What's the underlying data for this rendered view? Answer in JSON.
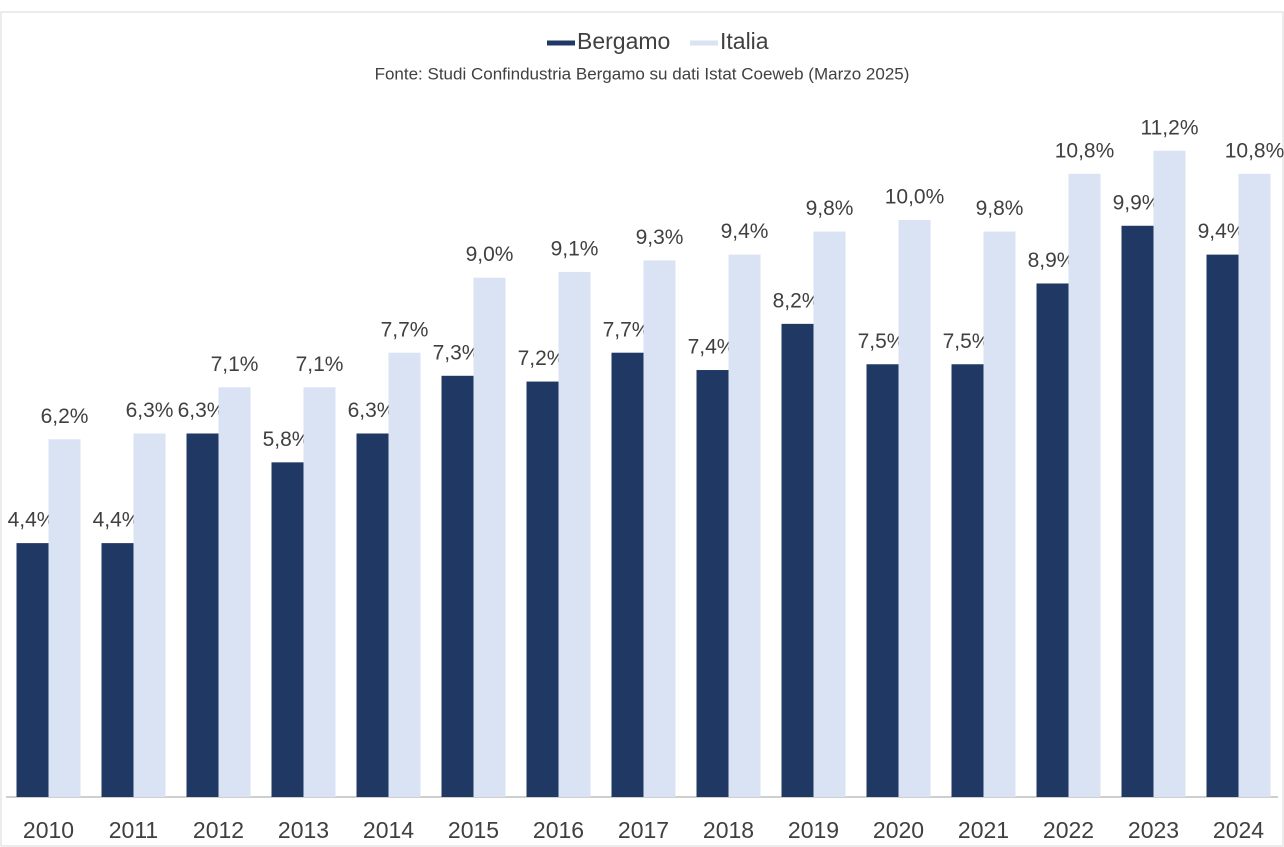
{
  "chart_data": {
    "type": "bar",
    "subtitle": "Fonte: Studi Confindustria Bergamo su dati Istat Coeweb (Marzo 2025)",
    "categories": [
      "2010",
      "2011",
      "2012",
      "2013",
      "2014",
      "2015",
      "2016",
      "2017",
      "2018",
      "2019",
      "2020",
      "2021",
      "2022",
      "2023",
      "2024"
    ],
    "series": [
      {
        "name": "Bergamo",
        "color": "#203864",
        "values": [
          4.4,
          4.4,
          6.3,
          5.8,
          6.3,
          7.3,
          7.2,
          7.7,
          7.4,
          8.2,
          7.5,
          7.5,
          8.9,
          9.9,
          9.4
        ],
        "value_labels": [
          "4,4%",
          "4,4%",
          "6,3%",
          "5,8%",
          "6,3%",
          "7,3%",
          "7,2%",
          "7,7%",
          "7,4%",
          "8,2%",
          "7,5%",
          "7,5%",
          "8,9%",
          "9,9%",
          "9,4%"
        ]
      },
      {
        "name": "Italia",
        "color": "#dae3f3",
        "values": [
          6.2,
          6.3,
          7.1,
          7.1,
          7.7,
          9.0,
          9.1,
          9.3,
          9.4,
          9.8,
          10.0,
          9.8,
          10.8,
          11.2,
          10.8
        ],
        "value_labels": [
          "6,2%",
          "6,3%",
          "7,1%",
          "7,1%",
          "7,7%",
          "9,0%",
          "9,1%",
          "9,3%",
          "9,4%",
          "9,8%",
          "10,0%",
          "9,8%",
          "10,8%",
          "11,2%",
          "10,8%"
        ]
      }
    ],
    "legend": "top"
  }
}
